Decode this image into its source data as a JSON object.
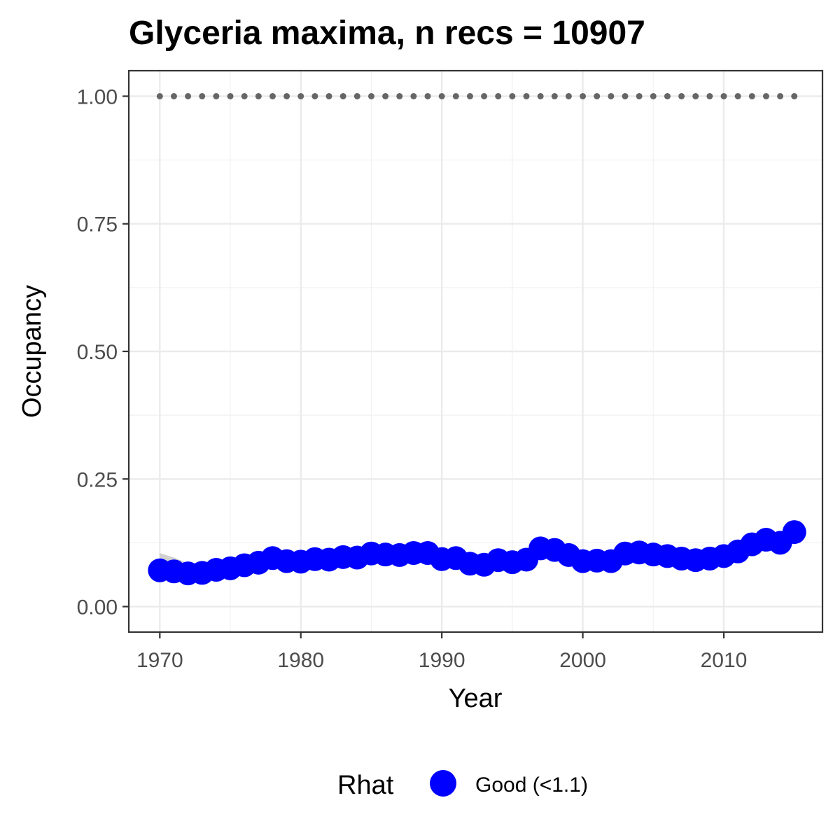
{
  "chart_data": {
    "type": "scatter",
    "title": "Glyceria maxima, n recs = 10907",
    "xlabel": "Year",
    "ylabel": "Occupancy",
    "xlim": [
      1967.8,
      2017
    ],
    "ylim": [
      -0.05,
      1.05
    ],
    "x_ticks": [
      1970,
      1980,
      1990,
      2000,
      2010
    ],
    "x_tick_labels": [
      "1970",
      "1980",
      "1990",
      "2000",
      "2010"
    ],
    "y_ticks": [
      0,
      0.25,
      0.5,
      0.75,
      1.0
    ],
    "y_tick_labels": [
      "0.00",
      "0.25",
      "0.50",
      "0.75",
      "1.00"
    ],
    "grid": true,
    "legend": {
      "title": "Rhat",
      "position": "bottom",
      "entries": [
        {
          "label": "Good (<1.1)",
          "color": "#0000ff"
        }
      ]
    },
    "series": [
      {
        "name": "Good (<1.1)",
        "color": "#0000ff",
        "x": [
          1970,
          1971,
          1972,
          1973,
          1974,
          1975,
          1976,
          1977,
          1978,
          1979,
          1980,
          1981,
          1982,
          1983,
          1984,
          1985,
          1986,
          1987,
          1988,
          1989,
          1990,
          1991,
          1992,
          1993,
          1994,
          1995,
          1996,
          1997,
          1998,
          1999,
          2000,
          2001,
          2002,
          2003,
          2004,
          2005,
          2006,
          2007,
          2008,
          2009,
          2010,
          2011,
          2012,
          2013,
          2014,
          2015
        ],
        "y": [
          0.071,
          0.069,
          0.065,
          0.066,
          0.072,
          0.075,
          0.081,
          0.086,
          0.095,
          0.089,
          0.088,
          0.093,
          0.092,
          0.097,
          0.096,
          0.104,
          0.102,
          0.101,
          0.105,
          0.105,
          0.093,
          0.095,
          0.084,
          0.082,
          0.091,
          0.087,
          0.092,
          0.114,
          0.111,
          0.101,
          0.089,
          0.09,
          0.089,
          0.104,
          0.106,
          0.102,
          0.099,
          0.094,
          0.091,
          0.094,
          0.099,
          0.108,
          0.122,
          0.131,
          0.125,
          0.146
        ]
      }
    ],
    "upper_bound": {
      "style": "dotted",
      "color": "#666666",
      "x": [
        1970,
        1971,
        1972,
        1973,
        1974,
        1975,
        1976,
        1977,
        1978,
        1979,
        1980,
        1981,
        1982,
        1983,
        1984,
        1985,
        1986,
        1987,
        1988,
        1989,
        1990,
        1991,
        1992,
        1993,
        1994,
        1995,
        1996,
        1997,
        1998,
        1999,
        2000,
        2001,
        2002,
        2003,
        2004,
        2005,
        2006,
        2007,
        2008,
        2009,
        2010,
        2011,
        2012,
        2013,
        2014,
        2015
      ],
      "y": [
        1,
        1,
        1,
        1,
        1,
        1,
        1,
        1,
        1,
        1,
        1,
        1,
        1,
        1,
        1,
        1,
        1,
        1,
        1,
        1,
        1,
        1,
        1,
        1,
        1,
        1,
        1,
        1,
        1,
        1,
        1,
        1,
        1,
        1,
        1,
        1,
        1,
        1,
        1,
        1,
        1,
        1,
        1,
        1,
        1,
        1
      ]
    },
    "ribbon": {
      "color": "#cccccc",
      "x": [
        1970,
        1971,
        1972
      ],
      "lower": [
        0.066,
        0.064,
        0.061
      ],
      "upper": [
        0.105,
        0.096,
        0.085
      ]
    }
  }
}
